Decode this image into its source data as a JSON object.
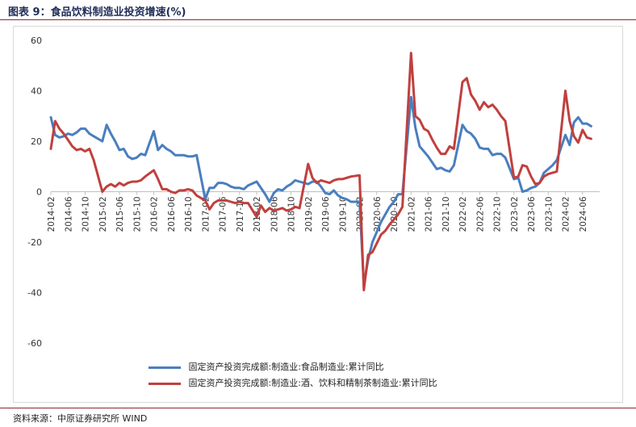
{
  "figure": {
    "title": "图表 9：食品饮料制造业投资增速(%)",
    "source": "资料来源：中原证券研究所 WIND"
  },
  "chart_data": {
    "type": "line",
    "xlabel": "",
    "ylabel": "",
    "ylim": [
      -60,
      60
    ],
    "yticks": [
      60,
      40,
      20,
      0,
      -20,
      -40,
      -60
    ],
    "grid": false,
    "legend_position": "bottom",
    "x_start": "2014-02",
    "x_end": "2024-10",
    "x_tick_labels": [
      "2014-02",
      "2014-06",
      "2014-10",
      "2015-02",
      "2015-06",
      "2015-10",
      "2016-02",
      "2016-06",
      "2016-10",
      "2017-02",
      "2017-06",
      "2017-10",
      "2018-02",
      "2018-06",
      "2018-10",
      "2019-02",
      "2019-06",
      "2019-10",
      "2020-02",
      "2020-06",
      "2020-10",
      "2021-02",
      "2021-06",
      "2021-10",
      "2022-02",
      "2022-06",
      "2022-10",
      "2023-02",
      "2023-06",
      "2023-10",
      "2024-02",
      "2024-06"
    ],
    "series": [
      {
        "name": "固定资产投资完成额:制造业:食品制造业:累计同比",
        "color": "#4a7ebf",
        "points": [
          [
            "2014-02",
            29.5
          ],
          [
            "2014-03",
            22.5
          ],
          [
            "2014-04",
            21.5
          ],
          [
            "2014-05",
            22.0
          ],
          [
            "2014-06",
            23.0
          ],
          [
            "2014-07",
            22.5
          ],
          [
            "2014-08",
            23.5
          ],
          [
            "2014-09",
            25.0
          ],
          [
            "2014-10",
            25.0
          ],
          [
            "2014-11",
            23.0
          ],
          [
            "2014-12",
            22.0
          ],
          [
            "2015-02",
            20.0
          ],
          [
            "2015-03",
            26.5
          ],
          [
            "2015-04",
            23.0
          ],
          [
            "2015-05",
            20.0
          ],
          [
            "2015-06",
            16.5
          ],
          [
            "2015-07",
            17.0
          ],
          [
            "2015-08",
            14.0
          ],
          [
            "2015-09",
            13.0
          ],
          [
            "2015-10",
            13.5
          ],
          [
            "2015-11",
            15.0
          ],
          [
            "2015-12",
            14.5
          ],
          [
            "2016-02",
            24.0
          ],
          [
            "2016-03",
            16.5
          ],
          [
            "2016-04",
            18.5
          ],
          [
            "2016-05",
            17.0
          ],
          [
            "2016-06",
            16.0
          ],
          [
            "2016-07",
            14.5
          ],
          [
            "2016-08",
            14.5
          ],
          [
            "2016-09",
            14.5
          ],
          [
            "2016-10",
            14.0
          ],
          [
            "2016-11",
            14.0
          ],
          [
            "2016-12",
            14.5
          ],
          [
            "2017-02",
            -3.0
          ],
          [
            "2017-03",
            1.5
          ],
          [
            "2017-04",
            1.5
          ],
          [
            "2017-05",
            3.5
          ],
          [
            "2017-06",
            3.5
          ],
          [
            "2017-07",
            3.0
          ],
          [
            "2017-08",
            2.0
          ],
          [
            "2017-09",
            1.5
          ],
          [
            "2017-10",
            1.5
          ],
          [
            "2017-11",
            1.0
          ],
          [
            "2017-12",
            2.5
          ],
          [
            "2018-02",
            4.0
          ],
          [
            "2018-03",
            1.5
          ],
          [
            "2018-04",
            -1.0
          ],
          [
            "2018-05",
            -4.0
          ],
          [
            "2018-06",
            -0.5
          ],
          [
            "2018-07",
            1.0
          ],
          [
            "2018-08",
            0.5
          ],
          [
            "2018-09",
            2.0
          ],
          [
            "2018-10",
            3.0
          ],
          [
            "2018-11",
            4.5
          ],
          [
            "2018-12",
            4.0
          ],
          [
            "2019-02",
            3.0
          ],
          [
            "2019-03",
            4.0
          ],
          [
            "2019-04",
            4.0
          ],
          [
            "2019-05",
            2.0
          ],
          [
            "2019-06",
            -0.5
          ],
          [
            "2019-07",
            -1.0
          ],
          [
            "2019-08",
            0.5
          ],
          [
            "2019-09",
            -1.5
          ],
          [
            "2019-10",
            -2.5
          ],
          [
            "2019-11",
            -3.0
          ],
          [
            "2019-12",
            -4.0
          ],
          [
            "2020-02",
            -4.0
          ],
          [
            "2020-03",
            -37.0
          ],
          [
            "2020-04",
            -27.0
          ],
          [
            "2020-05",
            -20.0
          ],
          [
            "2020-06",
            -16.0
          ],
          [
            "2020-07",
            -12.0
          ],
          [
            "2020-08",
            -9.0
          ],
          [
            "2020-09",
            -6.0
          ],
          [
            "2020-10",
            -4.0
          ],
          [
            "2020-11",
            -1.0
          ],
          [
            "2020-12",
            -1.0
          ],
          [
            "2021-02",
            37.5
          ],
          [
            "2021-03",
            25.5
          ],
          [
            "2021-04",
            18.0
          ],
          [
            "2021-05",
            16.0
          ],
          [
            "2021-06",
            14.0
          ],
          [
            "2021-07",
            11.5
          ],
          [
            "2021-08",
            9.0
          ],
          [
            "2021-09",
            9.5
          ],
          [
            "2021-10",
            8.5
          ],
          [
            "2021-11",
            8.0
          ],
          [
            "2021-12",
            10.5
          ],
          [
            "2022-02",
            26.5
          ],
          [
            "2022-03",
            24.0
          ],
          [
            "2022-04",
            23.0
          ],
          [
            "2022-05",
            21.0
          ],
          [
            "2022-06",
            17.5
          ],
          [
            "2022-07",
            17.0
          ],
          [
            "2022-08",
            17.0
          ],
          [
            "2022-09",
            14.5
          ],
          [
            "2022-10",
            15.0
          ],
          [
            "2022-11",
            15.0
          ],
          [
            "2022-12",
            13.5
          ],
          [
            "2023-02",
            5.0
          ],
          [
            "2023-03",
            5.5
          ],
          [
            "2023-04",
            0.0
          ],
          [
            "2023-05",
            0.5
          ],
          [
            "2023-06",
            1.5
          ],
          [
            "2023-07",
            2.0
          ],
          [
            "2023-08",
            3.5
          ],
          [
            "2023-09",
            7.5
          ],
          [
            "2023-10",
            9.0
          ],
          [
            "2023-11",
            10.5
          ],
          [
            "2023-12",
            12.5
          ],
          [
            "2024-02",
            22.5
          ],
          [
            "2024-03",
            18.5
          ],
          [
            "2024-04",
            27.5
          ],
          [
            "2024-05",
            29.5
          ],
          [
            "2024-06",
            27.0
          ],
          [
            "2024-07",
            27.0
          ],
          [
            "2024-08",
            26.0
          ]
        ]
      },
      {
        "name": "固定资产投资完成额:制造业:酒、饮料和精制茶制造业:累计同比",
        "color": "#c0403e",
        "points": [
          [
            "2014-02",
            17.0
          ],
          [
            "2014-03",
            28.0
          ],
          [
            "2014-04",
            25.0
          ],
          [
            "2014-05",
            23.0
          ],
          [
            "2014-06",
            20.5
          ],
          [
            "2014-07",
            18.0
          ],
          [
            "2014-08",
            16.5
          ],
          [
            "2014-09",
            17.0
          ],
          [
            "2014-10",
            16.0
          ],
          [
            "2014-11",
            17.0
          ],
          [
            "2014-12",
            12.5
          ],
          [
            "2015-02",
            0.0
          ],
          [
            "2015-03",
            2.0
          ],
          [
            "2015-04",
            3.0
          ],
          [
            "2015-05",
            2.0
          ],
          [
            "2015-06",
            3.5
          ],
          [
            "2015-07",
            2.5
          ],
          [
            "2015-08",
            3.5
          ],
          [
            "2015-09",
            4.0
          ],
          [
            "2015-10",
            4.0
          ],
          [
            "2015-11",
            4.5
          ],
          [
            "2015-12",
            6.0
          ],
          [
            "2016-02",
            8.5
          ],
          [
            "2016-03",
            5.0
          ],
          [
            "2016-04",
            1.0
          ],
          [
            "2016-05",
            1.0
          ],
          [
            "2016-06",
            0.0
          ],
          [
            "2016-07",
            -0.5
          ],
          [
            "2016-08",
            0.5
          ],
          [
            "2016-09",
            0.5
          ],
          [
            "2016-10",
            1.0
          ],
          [
            "2016-11",
            0.5
          ],
          [
            "2016-12",
            -1.5
          ],
          [
            "2017-02",
            -3.5
          ],
          [
            "2017-03",
            -7.0
          ],
          [
            "2017-04",
            -4.5
          ],
          [
            "2017-05",
            -3.5
          ],
          [
            "2017-06",
            -3.5
          ],
          [
            "2017-07",
            -3.5
          ],
          [
            "2017-08",
            -4.0
          ],
          [
            "2017-09",
            -4.5
          ],
          [
            "2017-10",
            -4.0
          ],
          [
            "2017-11",
            -4.5
          ],
          [
            "2017-12",
            -4.5
          ],
          [
            "2018-02",
            -10.0
          ],
          [
            "2018-03",
            -5.5
          ],
          [
            "2018-04",
            -8.0
          ],
          [
            "2018-05",
            -6.5
          ],
          [
            "2018-06",
            -7.5
          ],
          [
            "2018-07",
            -7.0
          ],
          [
            "2018-08",
            -6.5
          ],
          [
            "2018-09",
            -7.5
          ],
          [
            "2018-10",
            -7.0
          ],
          [
            "2018-11",
            -6.0
          ],
          [
            "2018-12",
            -6.5
          ],
          [
            "2019-02",
            11.0
          ],
          [
            "2019-03",
            5.5
          ],
          [
            "2019-04",
            3.5
          ],
          [
            "2019-05",
            4.5
          ],
          [
            "2019-06",
            4.0
          ],
          [
            "2019-07",
            3.5
          ],
          [
            "2019-08",
            4.5
          ],
          [
            "2019-09",
            5.0
          ],
          [
            "2019-10",
            5.0
          ],
          [
            "2019-11",
            5.5
          ],
          [
            "2019-12",
            6.0
          ],
          [
            "2020-02",
            6.5
          ],
          [
            "2020-03",
            -39.0
          ],
          [
            "2020-04",
            -25.0
          ],
          [
            "2020-05",
            -24.0
          ],
          [
            "2020-06",
            -20.5
          ],
          [
            "2020-07",
            -17.0
          ],
          [
            "2020-08",
            -15.5
          ],
          [
            "2020-09",
            -13.0
          ],
          [
            "2020-10",
            -11.0
          ],
          [
            "2020-11",
            -9.0
          ],
          [
            "2020-12",
            -6.0
          ],
          [
            "2021-02",
            55.0
          ],
          [
            "2021-03",
            30.0
          ],
          [
            "2021-04",
            28.5
          ],
          [
            "2021-05",
            25.0
          ],
          [
            "2021-06",
            24.0
          ],
          [
            "2021-07",
            20.5
          ],
          [
            "2021-08",
            17.5
          ],
          [
            "2021-09",
            15.0
          ],
          [
            "2021-10",
            15.0
          ],
          [
            "2021-11",
            18.0
          ],
          [
            "2021-12",
            17.0
          ],
          [
            "2022-02",
            43.5
          ],
          [
            "2022-03",
            45.0
          ],
          [
            "2022-04",
            38.5
          ],
          [
            "2022-05",
            36.0
          ],
          [
            "2022-06",
            32.5
          ],
          [
            "2022-07",
            35.5
          ],
          [
            "2022-08",
            33.5
          ],
          [
            "2022-09",
            34.5
          ],
          [
            "2022-10",
            32.5
          ],
          [
            "2022-11",
            30.0
          ],
          [
            "2022-12",
            28.0
          ],
          [
            "2023-02",
            5.5
          ],
          [
            "2023-03",
            6.0
          ],
          [
            "2023-04",
            10.5
          ],
          [
            "2023-05",
            10.0
          ],
          [
            "2023-06",
            6.0
          ],
          [
            "2023-07",
            3.0
          ],
          [
            "2023-08",
            3.5
          ],
          [
            "2023-09",
            6.0
          ],
          [
            "2023-10",
            7.0
          ],
          [
            "2023-11",
            7.5
          ],
          [
            "2023-12",
            8.0
          ],
          [
            "2024-02",
            40.0
          ],
          [
            "2024-03",
            28.0
          ],
          [
            "2024-04",
            22.0
          ],
          [
            "2024-05",
            19.5
          ],
          [
            "2024-06",
            24.5
          ],
          [
            "2024-07",
            21.5
          ],
          [
            "2024-08",
            21.0
          ]
        ]
      }
    ]
  }
}
